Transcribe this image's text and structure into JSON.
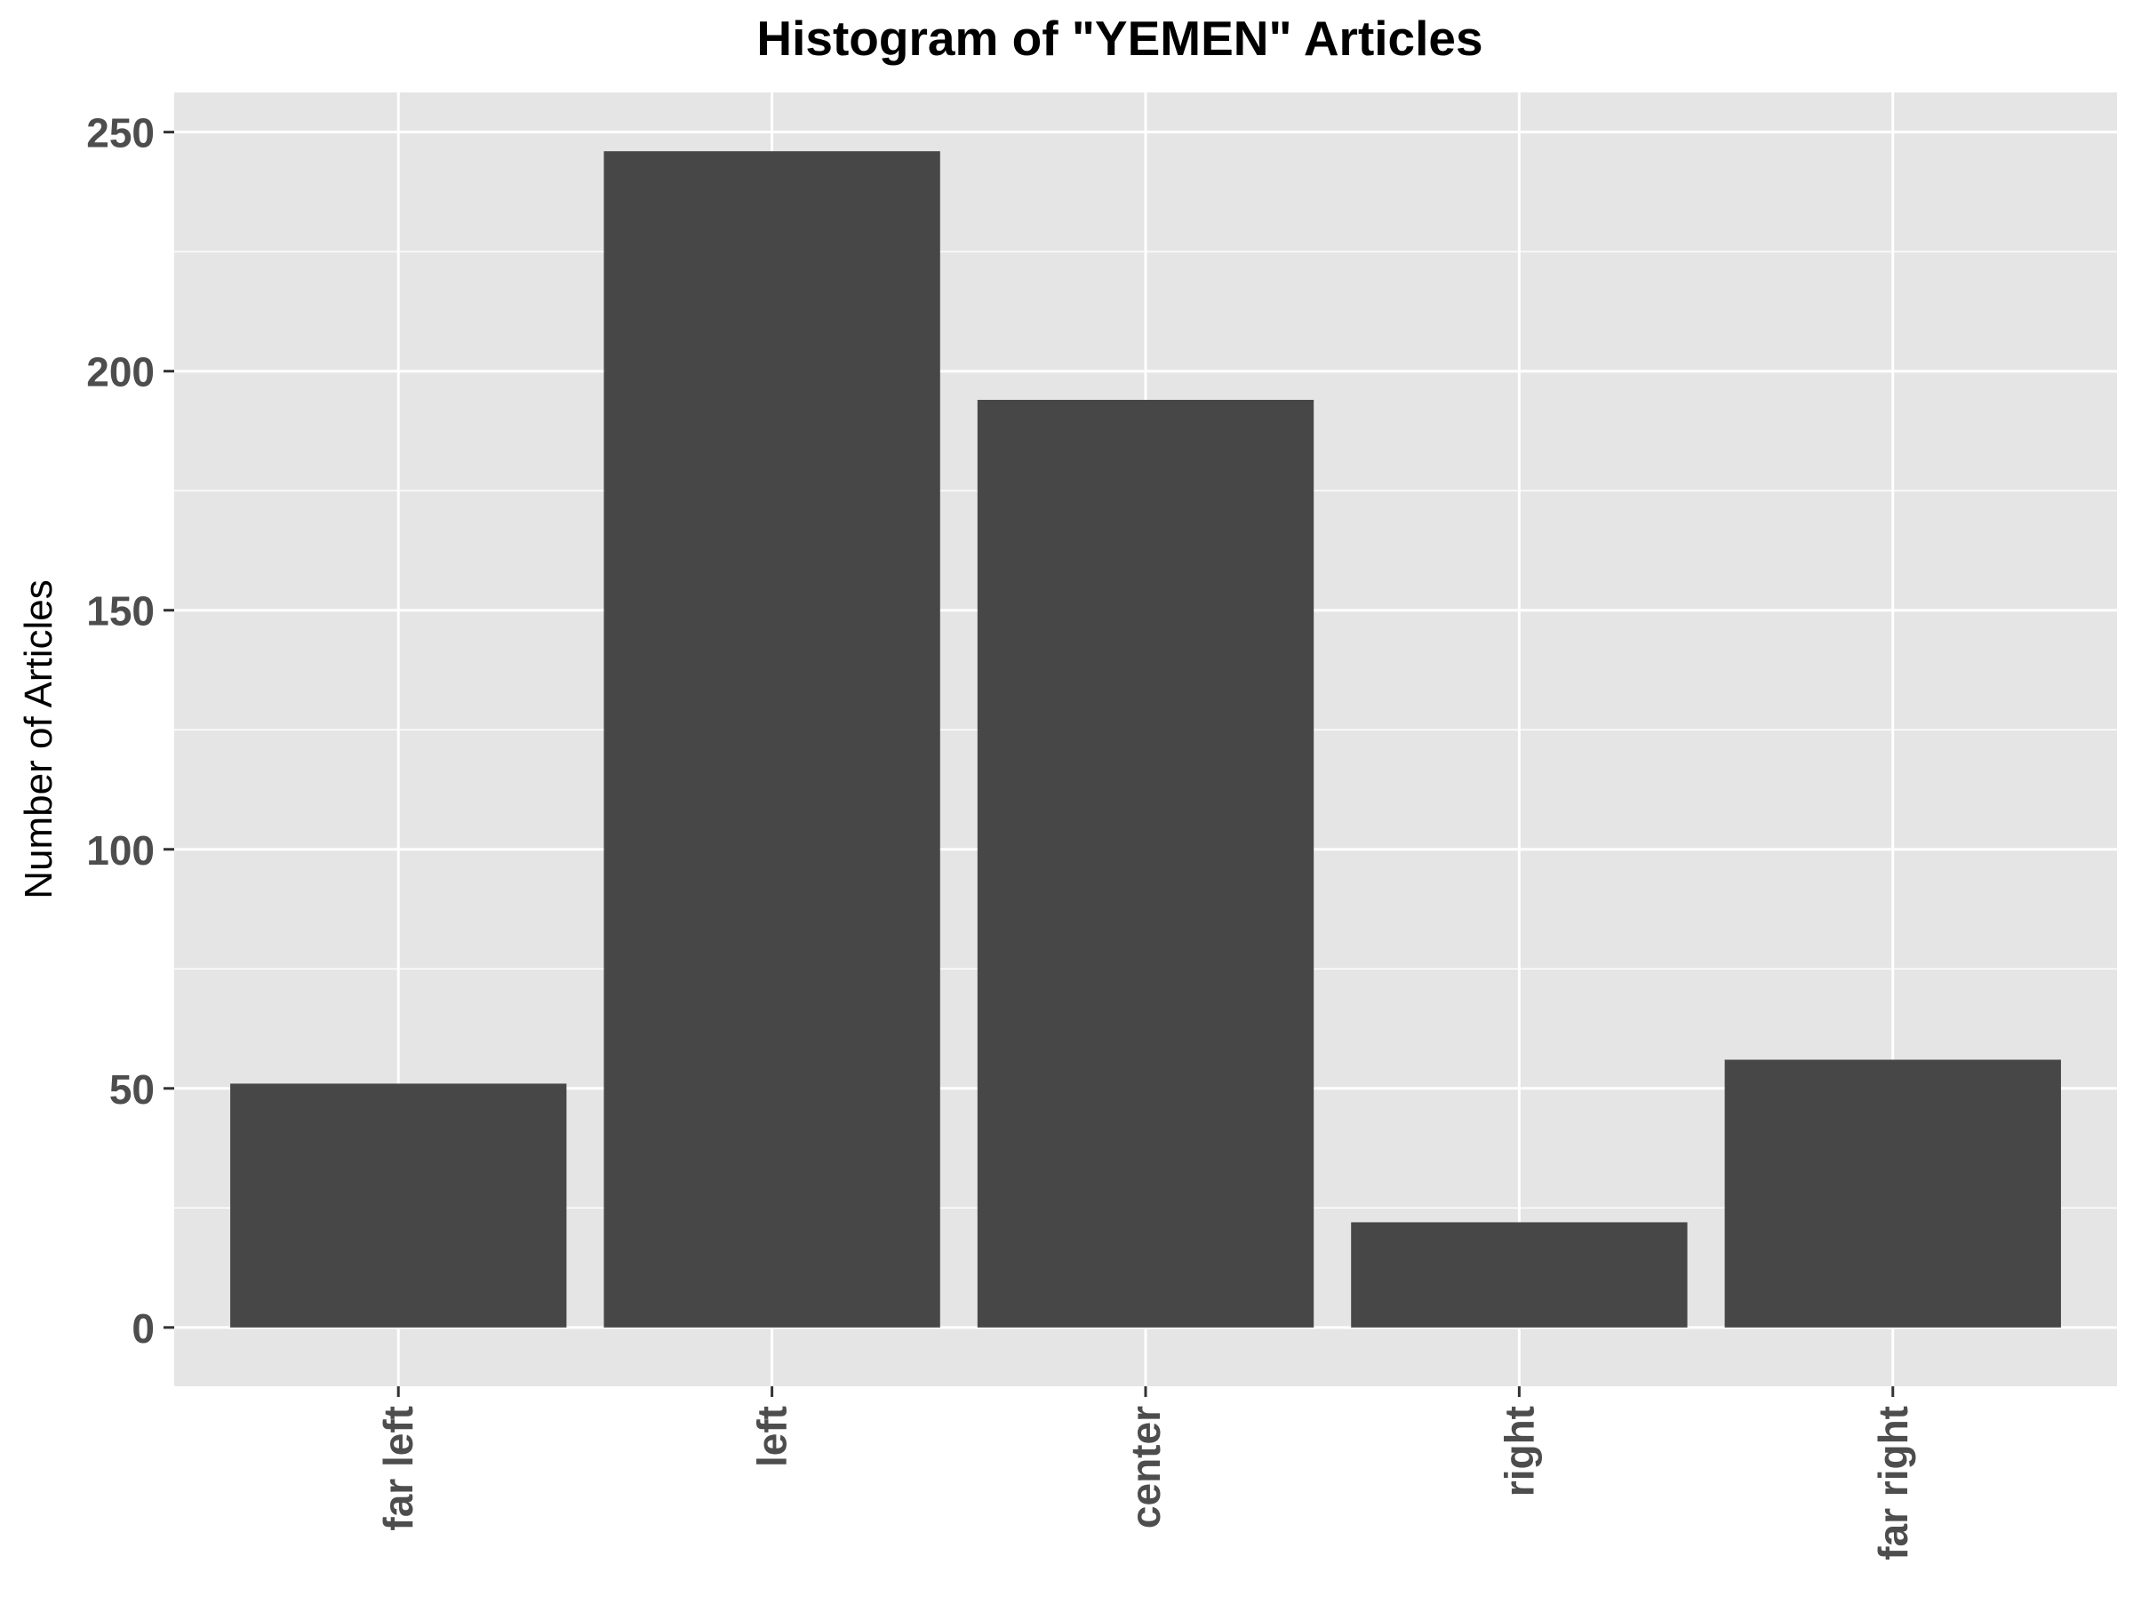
{
  "chart_data": {
    "type": "bar",
    "title": "Histogram of \"YEMEN\" Articles",
    "xlabel": "",
    "ylabel": "Number of Articles",
    "categories": [
      "far left",
      "left",
      "center",
      "right",
      "far right"
    ],
    "values": [
      51,
      246,
      194,
      22,
      56
    ],
    "yticks": [
      0,
      50,
      100,
      150,
      200,
      250
    ],
    "ylim": [
      -12.3,
      258.3
    ],
    "grid": true,
    "colors": {
      "panel": "#e5e5e5",
      "grid": "#ffffff",
      "bar": "#474747",
      "axis_text": "#4d4d4d",
      "title": "#000000"
    }
  }
}
